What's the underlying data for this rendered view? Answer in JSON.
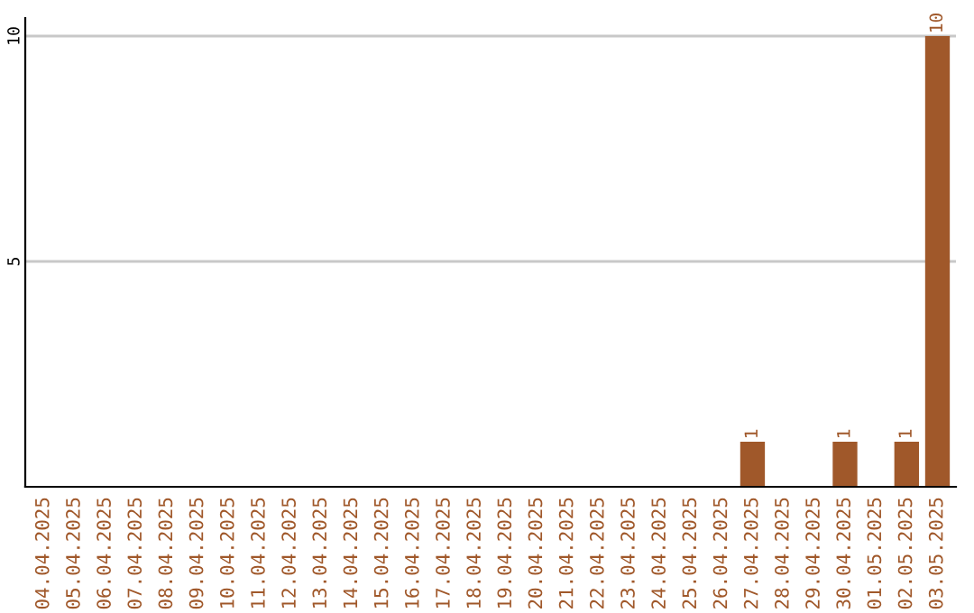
{
  "chart_data": {
    "type": "bar",
    "categories": [
      "04.04.2025",
      "05.04.2025",
      "06.04.2025",
      "07.04.2025",
      "08.04.2025",
      "09.04.2025",
      "10.04.2025",
      "11.04.2025",
      "12.04.2025",
      "13.04.2025",
      "14.04.2025",
      "15.04.2025",
      "16.04.2025",
      "17.04.2025",
      "18.04.2025",
      "19.04.2025",
      "20.04.2025",
      "21.04.2025",
      "22.04.2025",
      "23.04.2025",
      "24.04.2025",
      "25.04.2025",
      "26.04.2025",
      "27.04.2025",
      "28.04.2025",
      "29.04.2025",
      "30.04.2025",
      "01.05.2025",
      "02.05.2025",
      "03.05.2025"
    ],
    "values": [
      0,
      0,
      0,
      0,
      0,
      0,
      0,
      0,
      0,
      0,
      0,
      0,
      0,
      0,
      0,
      0,
      0,
      0,
      0,
      0,
      0,
      0,
      0,
      1,
      0,
      0,
      1,
      0,
      1,
      10
    ],
    "value_labels": [
      null,
      null,
      null,
      null,
      null,
      null,
      null,
      null,
      null,
      null,
      null,
      null,
      null,
      null,
      null,
      null,
      null,
      null,
      null,
      null,
      null,
      null,
      null,
      "1",
      null,
      null,
      "1",
      null,
      "1",
      "10"
    ],
    "color": "#a0582a",
    "ylim": [
      0,
      10.4
    ],
    "yticks": [
      5,
      10
    ],
    "grid": "y"
  }
}
